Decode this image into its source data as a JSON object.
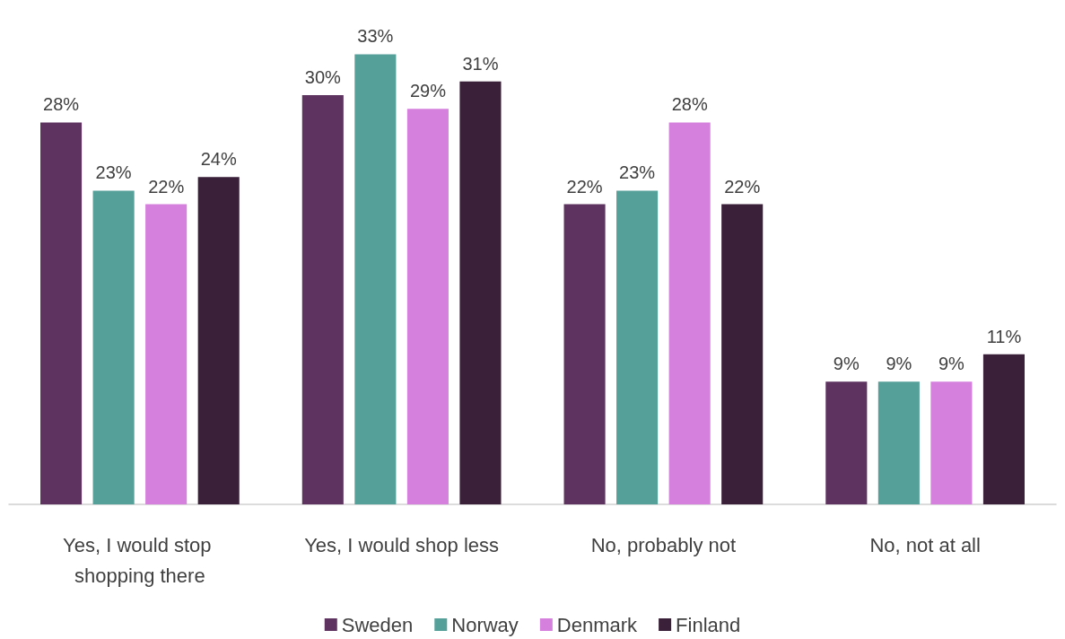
{
  "chart_data": {
    "type": "bar",
    "categories": [
      "Yes, I would stop shopping there",
      "Yes, I would shop less",
      "No, probably not",
      "No, not at all"
    ],
    "series": [
      {
        "name": "Sweden",
        "color": "#5e3360",
        "values": [
          28,
          30,
          22,
          9
        ],
        "value_labels": [
          "28%",
          "30%",
          "22%",
          "9%"
        ]
      },
      {
        "name": "Norway",
        "color": "#56a09a",
        "values": [
          23,
          33,
          23,
          9
        ],
        "value_labels": [
          "23%",
          "33%",
          "23%",
          "9%"
        ]
      },
      {
        "name": "Denmark",
        "color": "#d580dc",
        "values": [
          22,
          29,
          28,
          9
        ],
        "value_labels": [
          "22%",
          "29%",
          "28%",
          "9%"
        ]
      },
      {
        "name": "Finland",
        "color": "#3a2038",
        "values": [
          24,
          31,
          22,
          11
        ],
        "value_labels": [
          "24%",
          "31%",
          "22%",
          "11%"
        ]
      }
    ],
    "legend": "bottom"
  }
}
